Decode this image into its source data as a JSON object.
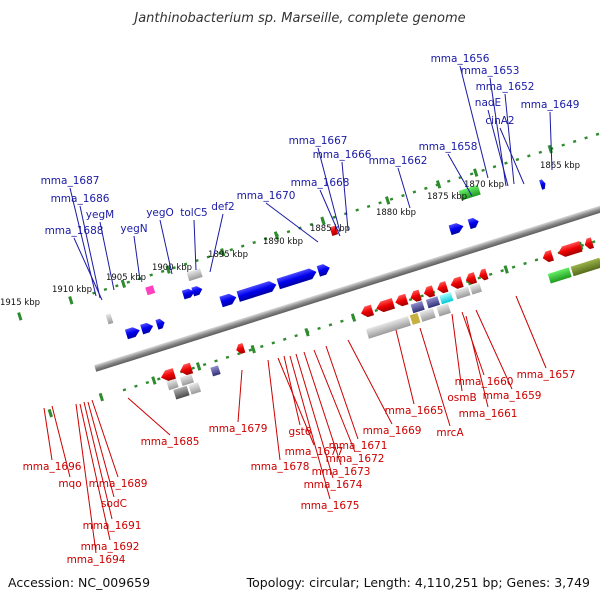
{
  "title": "Janthinobacterium sp. Marseille, complete genome",
  "footer": {
    "accession": "Accession: NC_009659",
    "topology": "Topology: circular; Length: 4,110,251 bp; Genes: 3,749"
  },
  "colors": {
    "forward_label": "#1a1aa6",
    "reverse_label": "#cc0000",
    "forward_gene": "#0000ee",
    "reverse_gene": "#ee0000",
    "tick": "#2e8b2e",
    "backbone": "#999999"
  },
  "ticks": [
    "1865 kbp",
    "1870 kbp",
    "1875 kbp",
    "1880 kbp",
    "1885 kbp",
    "1890 kbp",
    "1895 kbp",
    "1900 kbp",
    "1905 kbp",
    "1910 kbp",
    "1915 kbp"
  ],
  "forward_labels": [
    "mma_1656",
    "mma_1653",
    "mma_1652",
    "nadE",
    "mma_1649",
    "cinA2",
    "mma_1658",
    "mma_1662",
    "mma_1667",
    "mma_1666",
    "mma_1668",
    "mma_1670",
    "def2",
    "tolC5",
    "yegO",
    "yegN",
    "yegM",
    "mma_1687",
    "mma_1686",
    "mma_1688"
  ],
  "reverse_labels": [
    "mma_1657",
    "mma_1660",
    "mma_1659",
    "osmB",
    "mma_1661",
    "mrcA",
    "mma_1665",
    "mma_1669",
    "mma_1671",
    "mma_1672",
    "mma_1673",
    "mma_1674",
    "mma_1675",
    "gst6",
    "mma_1677",
    "mma_1678",
    "mma_1679",
    "mma_1685",
    "mma_1689",
    "sodC",
    "mma_1691",
    "mma_1692",
    "mma_1694",
    "mqo",
    "mma_1696"
  ]
}
